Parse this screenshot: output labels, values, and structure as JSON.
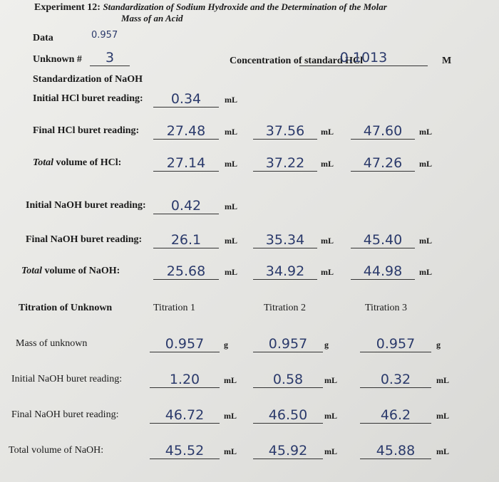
{
  "header": {
    "label": "Experiment 12:",
    "title": "Standardization of Sodium Hydroxide and the Determination of the Molar",
    "title_line2": "Mass of an Acid"
  },
  "data": {
    "label": "Data",
    "note": "0.957"
  },
  "unknown": {
    "label": "Unknown #",
    "value": "3"
  },
  "hcl": {
    "label": "Concentration of standard HCl",
    "value": "0.1013",
    "unit": "M"
  },
  "standardization": {
    "heading": "Standardization of NaOH",
    "rows": [
      {
        "label": "Initial HCl buret reading:",
        "values": [
          "0.34"
        ],
        "unit": "mL"
      },
      {
        "label": "Final HCl buret reading:",
        "values": [
          "27.48",
          "37.56",
          "47.60"
        ],
        "unit": "mL"
      },
      {
        "emphasis": "Total",
        "label": " volume of HCl:",
        "values": [
          "27.14",
          "37.22",
          "47.26"
        ],
        "unit": "mL"
      },
      {
        "label": "Initial NaOH buret reading:",
        "values": [
          "0.42"
        ],
        "unit": "mL"
      },
      {
        "label": "Final NaOH buret reading:",
        "values": [
          "26.1",
          "35.34",
          "45.40"
        ],
        "unit": "mL"
      },
      {
        "emphasis": "Total",
        "label": " volume of NaOH:",
        "values": [
          "25.68",
          "34.92",
          "44.98"
        ],
        "unit": "mL"
      }
    ]
  },
  "titration": {
    "heading": "Titration of Unknown",
    "columns": [
      "Titration 1",
      "Titration 2",
      "Titration 3"
    ],
    "rows": [
      {
        "label": "Mass of unknown",
        "values": [
          "0.957",
          "0.957",
          "0.957"
        ],
        "unit": "g"
      },
      {
        "label": "Initial NaOH buret reading:",
        "values": [
          "1.20",
          "0.58",
          "0.32"
        ],
        "unit": "mL"
      },
      {
        "label": "Final NaOH buret reading:",
        "values": [
          "46.72",
          "46.50",
          "46.2"
        ],
        "unit": "mL"
      },
      {
        "label": "Total volume of NaOH:",
        "values": [
          "45.52",
          "45.92",
          "45.88"
        ],
        "unit": "mL"
      }
    ]
  }
}
